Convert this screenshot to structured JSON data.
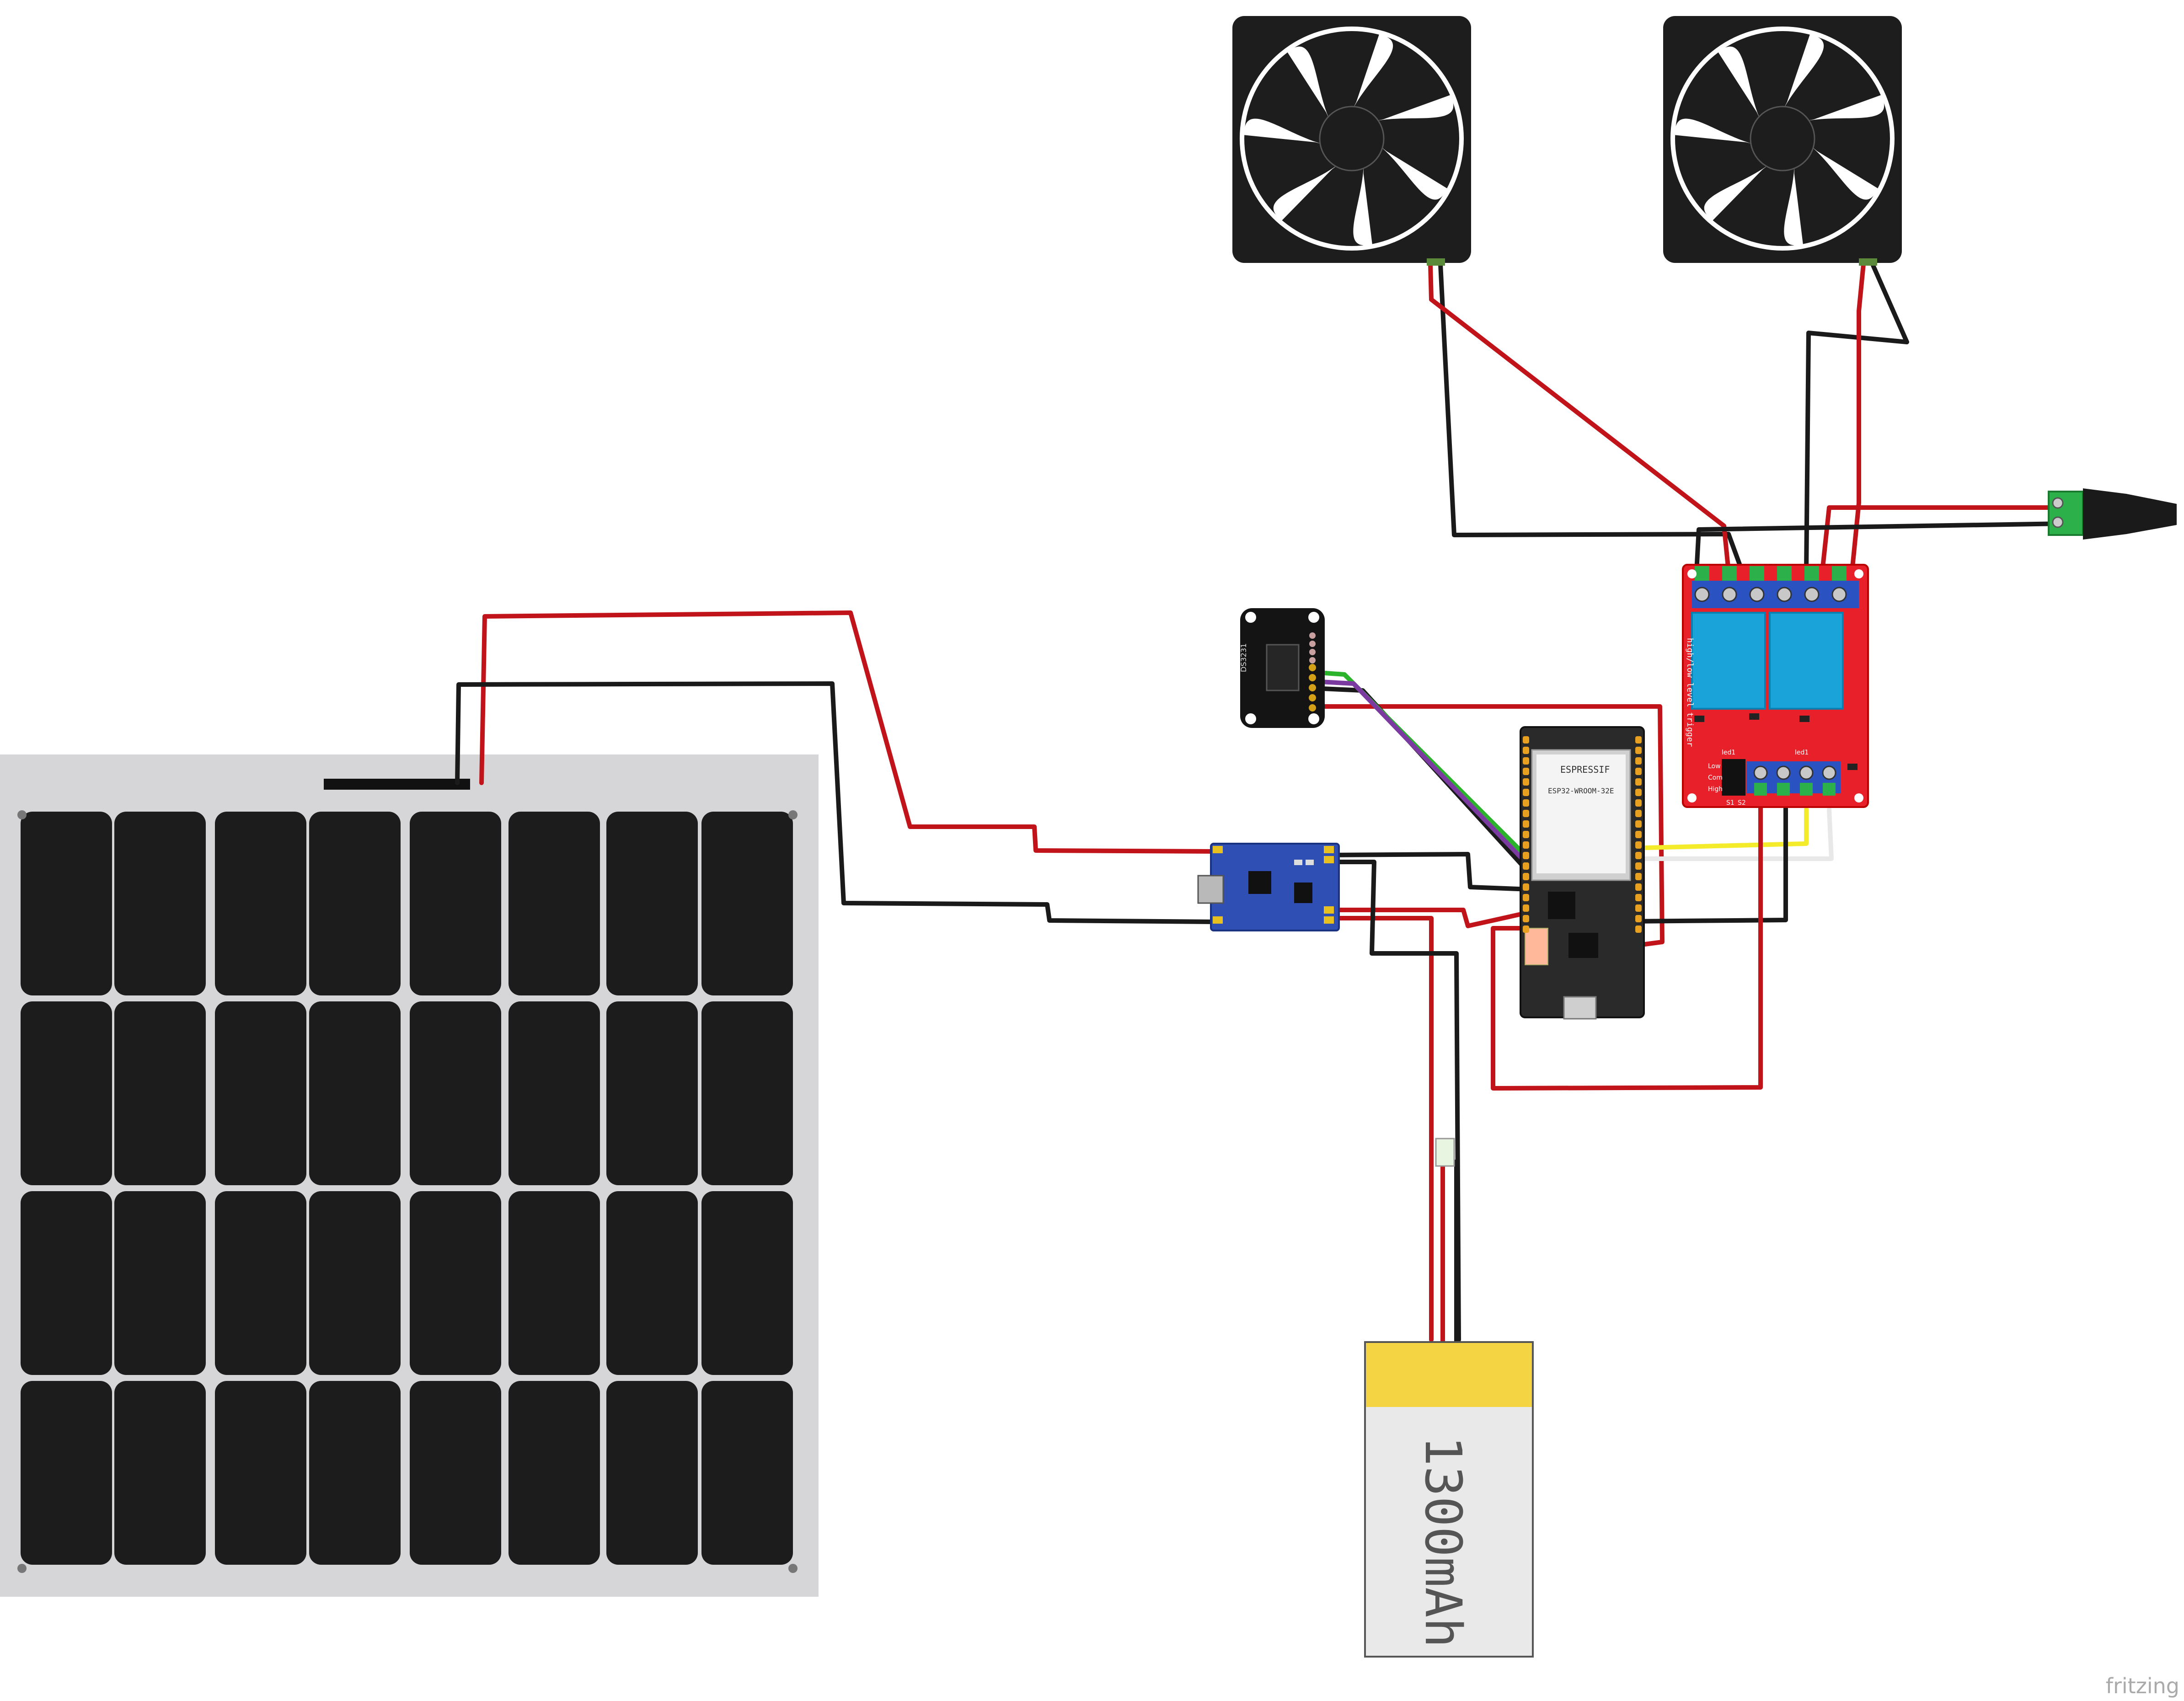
{
  "diagram": {
    "watermark": "fritzing",
    "battery": {
      "label": "1300mAh"
    },
    "esp32": {
      "brand": "ESPRESSIF",
      "model": "ESP32-WROOM-32E"
    },
    "relay": {
      "side_text": "high/low level trigger",
      "led_label": "led1",
      "jumper_labels": [
        "Low",
        "Com",
        "High"
      ],
      "switch_labels": [
        "S1",
        "S2"
      ]
    },
    "rtc": {
      "label": "DS3231"
    }
  },
  "colors": {
    "wire_red": "#c0141a",
    "wire_black": "#1a1a1a",
    "wire_yellow": "#f4ec2a",
    "wire_white": "#e8e8e8",
    "wire_green": "#2bb32b",
    "wire_purple": "#7a3aa0",
    "relay_board": "#e8202a",
    "relay_coil": "#1aa3d9",
    "charger_board": "#2f4fb4",
    "esp_board": "#2a2a2a",
    "solar_frame": "#d6d6d8",
    "solar_cell": "#1c1c1c"
  },
  "icons": [
    "fan-icon",
    "dc-jack-icon",
    "usb-port-icon"
  ]
}
